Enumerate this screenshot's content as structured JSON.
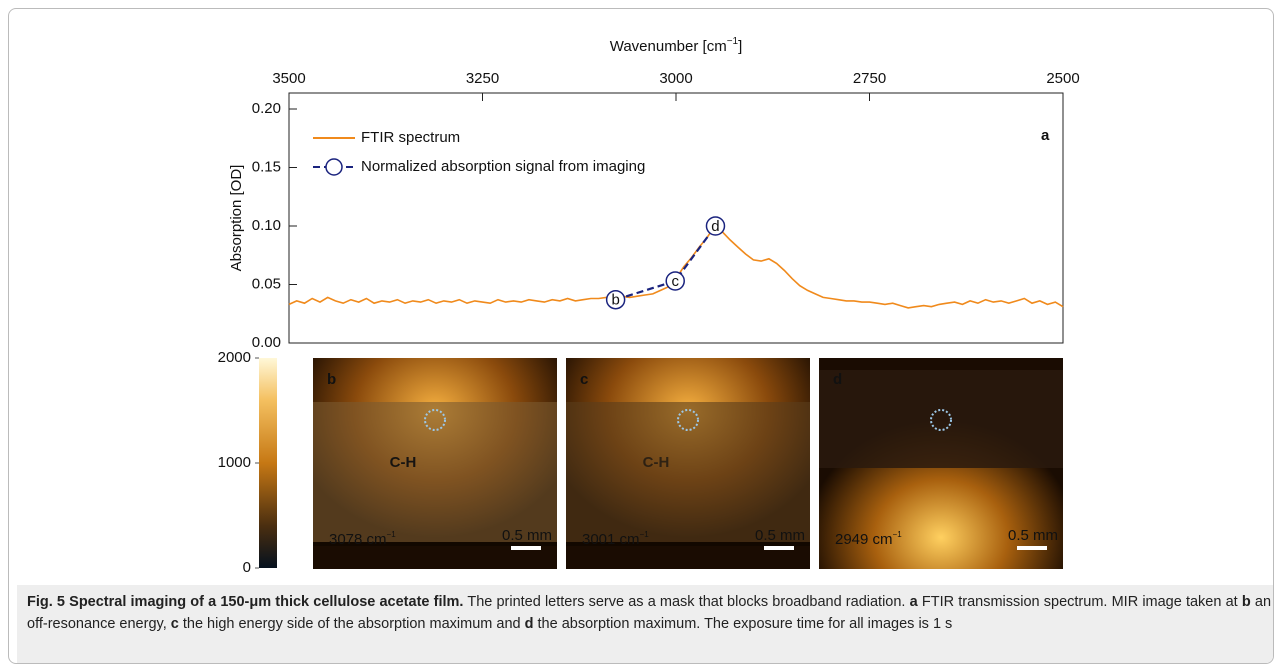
{
  "chart_data": {
    "type": "line",
    "xlabel": {
      "text": "Wavenumber [cm",
      "sup": "−1",
      "tail": "]"
    },
    "ylabel": "Absorption [OD]",
    "panel_label": "a",
    "xlim": [
      3500,
      2500
    ],
    "xticks": [
      3500,
      3250,
      3000,
      2750,
      2500
    ],
    "ylim": [
      0,
      0.2
    ],
    "yticks": [
      {
        "value": 0,
        "label": "0.00"
      },
      {
        "value": 0.05,
        "label": "0.05"
      },
      {
        "value": 0.1,
        "label": "0.10"
      },
      {
        "value": 0.15,
        "label": "0.15"
      },
      {
        "value": 0.2,
        "label": "0.20"
      }
    ],
    "legend": "upper left",
    "series": [
      {
        "name": "FTIR spectrum",
        "color": "#f08a1c",
        "style": "solid",
        "x": [
          3500,
          3490,
          3480,
          3470,
          3460,
          3450,
          3440,
          3430,
          3420,
          3410,
          3400,
          3390,
          3380,
          3370,
          3360,
          3350,
          3340,
          3330,
          3320,
          3310,
          3300,
          3290,
          3280,
          3270,
          3260,
          3250,
          3240,
          3230,
          3220,
          3210,
          3200,
          3190,
          3180,
          3170,
          3160,
          3150,
          3140,
          3130,
          3120,
          3110,
          3100,
          3090,
          3080,
          3070,
          3060,
          3050,
          3040,
          3030,
          3020,
          3010,
          3000,
          2990,
          2980,
          2970,
          2960,
          2955,
          2950,
          2945,
          2940,
          2930,
          2920,
          2910,
          2900,
          2890,
          2880,
          2870,
          2860,
          2850,
          2840,
          2830,
          2820,
          2810,
          2800,
          2790,
          2780,
          2770,
          2760,
          2750,
          2740,
          2730,
          2720,
          2710,
          2700,
          2690,
          2680,
          2670,
          2660,
          2650,
          2640,
          2630,
          2620,
          2610,
          2600,
          2590,
          2580,
          2570,
          2560,
          2550,
          2540,
          2530,
          2520,
          2510,
          2500
        ],
        "values": [
          0.033,
          0.036,
          0.034,
          0.038,
          0.035,
          0.039,
          0.036,
          0.034,
          0.037,
          0.035,
          0.038,
          0.034,
          0.036,
          0.035,
          0.037,
          0.034,
          0.036,
          0.035,
          0.037,
          0.034,
          0.036,
          0.035,
          0.037,
          0.034,
          0.036,
          0.035,
          0.034,
          0.037,
          0.035,
          0.036,
          0.035,
          0.037,
          0.036,
          0.035,
          0.037,
          0.036,
          0.038,
          0.036,
          0.037,
          0.038,
          0.038,
          0.039,
          0.038,
          0.04,
          0.039,
          0.04,
          0.041,
          0.042,
          0.045,
          0.048,
          0.055,
          0.065,
          0.073,
          0.082,
          0.09,
          0.095,
          0.1,
          0.097,
          0.095,
          0.088,
          0.082,
          0.076,
          0.071,
          0.07,
          0.072,
          0.068,
          0.062,
          0.055,
          0.049,
          0.045,
          0.042,
          0.039,
          0.038,
          0.037,
          0.036,
          0.036,
          0.035,
          0.035,
          0.034,
          0.033,
          0.034,
          0.032,
          0.03,
          0.031,
          0.032,
          0.031,
          0.033,
          0.034,
          0.035,
          0.033,
          0.036,
          0.034,
          0.037,
          0.035,
          0.036,
          0.034,
          0.036,
          0.038,
          0.034,
          0.036,
          0.033,
          0.035,
          0.031
        ]
      },
      {
        "name": "Normalized absorption signal from imaging",
        "color": "#1a237e",
        "style": "dashed",
        "x": [
          3078,
          3001,
          2949
        ],
        "values": [
          0.037,
          0.053,
          0.1
        ],
        "point_labels": [
          "b",
          "c",
          "d"
        ]
      }
    ]
  },
  "imaging": {
    "clim": [
      0,
      2000
    ],
    "colorbar_ticks": [
      0,
      1000,
      2000
    ],
    "panels": [
      {
        "label": "b",
        "wavenumber": "3078 cm",
        "sup": "−1",
        "scale": "0.5 mm",
        "mask": "C-H"
      },
      {
        "label": "c",
        "wavenumber": "3001 cm",
        "sup": "−1",
        "scale": "0.5 mm",
        "mask": "C-H"
      },
      {
        "label": "d",
        "wavenumber": "2949 cm",
        "sup": "−1",
        "scale": "0.5 mm"
      }
    ]
  },
  "caption": {
    "title": "Fig. 5 Spectral imaging of a 150-μm thick cellulose acetate film.",
    "parts": [
      {
        "text": " The printed letters serve as a mask that blocks broadband radiation. "
      },
      {
        "text": "a",
        "bold": true
      },
      {
        "text": " FTIR transmission spectrum. MIR image taken at "
      },
      {
        "text": "b",
        "bold": true
      },
      {
        "text": " an off-resonance energy, "
      },
      {
        "text": "c",
        "bold": true
      },
      {
        "text": " the high energy side of the absorption maximum and "
      },
      {
        "text": "d",
        "bold": true
      },
      {
        "text": " the absorption maximum. The exposure time for all images is 1 s"
      }
    ]
  }
}
